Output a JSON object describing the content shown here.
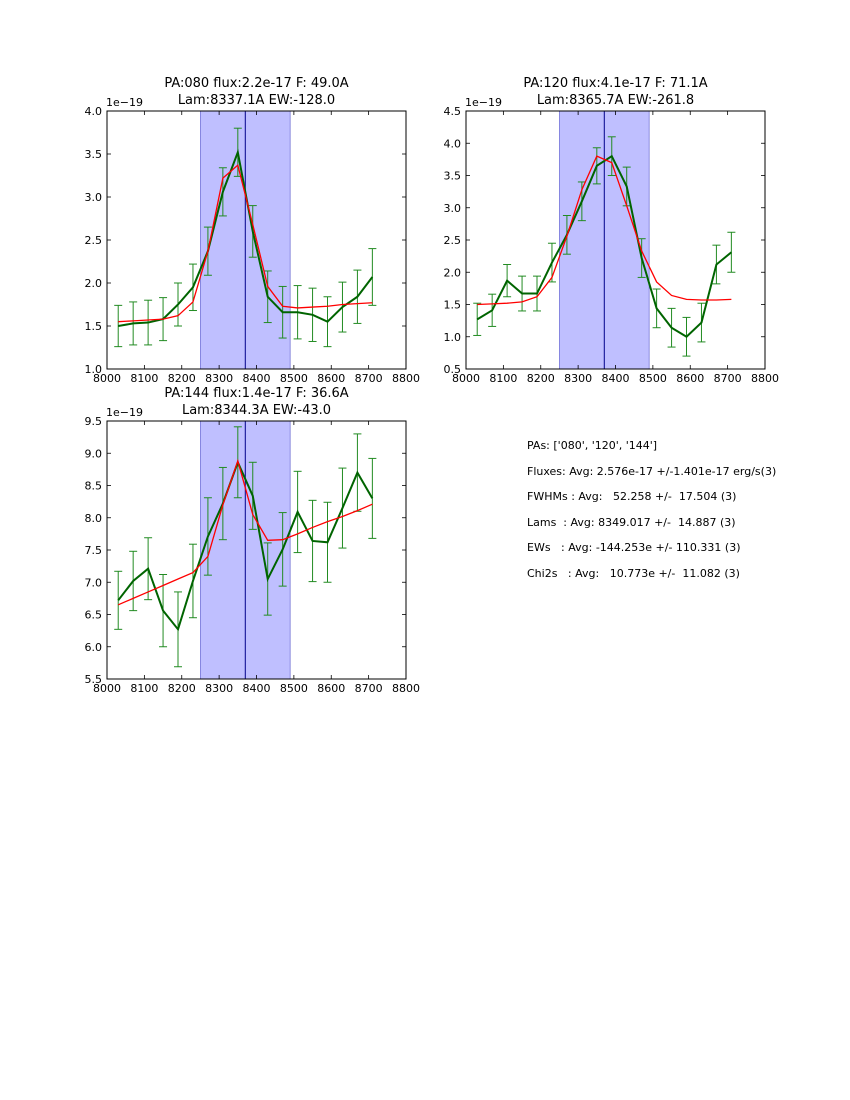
{
  "colors": {
    "data": "#006400",
    "errorbar": "#228b22",
    "fit": "#ff0000",
    "band": "#bfbfff",
    "band_edge": "#5555cc",
    "center_line": "#00008b"
  },
  "chart_data": [
    {
      "type": "line",
      "title_line1": "PA:080 flux:2.2e-17 F: 49.0A",
      "title_line2": "Lam:8337.1A EW:-128.0",
      "offset_label": "1e−19",
      "xlim": [
        8000,
        8800
      ],
      "ylim": [
        1.0,
        4.0
      ],
      "xticks": [
        8000,
        8100,
        8200,
        8300,
        8400,
        8500,
        8600,
        8700,
        8800
      ],
      "yticks": [
        1.0,
        1.5,
        2.0,
        2.5,
        3.0,
        3.5,
        4.0
      ],
      "band": [
        8250,
        8490
      ],
      "center": 8370,
      "series": [
        {
          "name": "data",
          "x": [
            8030,
            8070,
            8110,
            8150,
            8190,
            8230,
            8270,
            8310,
            8350,
            8390,
            8430,
            8470,
            8510,
            8550,
            8590,
            8630,
            8670,
            8710
          ],
          "values": [
            1.5,
            1.53,
            1.54,
            1.58,
            1.75,
            1.95,
            2.37,
            3.06,
            3.52,
            2.6,
            1.84,
            1.66,
            1.66,
            1.63,
            1.55,
            1.72,
            1.84,
            2.07
          ],
          "errors": [
            0.24,
            0.25,
            0.26,
            0.25,
            0.25,
            0.27,
            0.28,
            0.28,
            0.28,
            0.3,
            0.3,
            0.3,
            0.31,
            0.31,
            0.29,
            0.29,
            0.31,
            0.33
          ]
        },
        {
          "name": "fit",
          "x": [
            8030,
            8070,
            8110,
            8150,
            8190,
            8230,
            8270,
            8310,
            8350,
            8390,
            8430,
            8470,
            8510,
            8550,
            8590,
            8630,
            8670,
            8710
          ],
          "values": [
            1.55,
            1.56,
            1.57,
            1.58,
            1.62,
            1.78,
            2.37,
            3.22,
            3.37,
            2.68,
            1.96,
            1.73,
            1.71,
            1.72,
            1.73,
            1.75,
            1.76,
            1.77
          ]
        }
      ]
    },
    {
      "type": "line",
      "title_line1": "PA:120 flux:4.1e-17 F: 71.1A",
      "title_line2": "Lam:8365.7A EW:-261.8",
      "offset_label": "1e−19",
      "xlim": [
        8000,
        8800
      ],
      "ylim": [
        0.5,
        4.5
      ],
      "xticks": [
        8000,
        8100,
        8200,
        8300,
        8400,
        8500,
        8600,
        8700,
        8800
      ],
      "yticks": [
        0.5,
        1.0,
        1.5,
        2.0,
        2.5,
        3.0,
        3.5,
        4.0,
        4.5
      ],
      "band": [
        8250,
        8490
      ],
      "center": 8370,
      "series": [
        {
          "name": "data",
          "x": [
            8030,
            8070,
            8110,
            8150,
            8190,
            8230,
            8270,
            8310,
            8350,
            8390,
            8430,
            8470,
            8510,
            8550,
            8590,
            8630,
            8670,
            8710
          ],
          "values": [
            1.27,
            1.41,
            1.87,
            1.67,
            1.67,
            2.15,
            2.58,
            3.1,
            3.65,
            3.8,
            3.33,
            2.22,
            1.44,
            1.14,
            1.0,
            1.22,
            2.12,
            2.31
          ],
          "errors": [
            0.25,
            0.25,
            0.25,
            0.27,
            0.27,
            0.3,
            0.3,
            0.3,
            0.28,
            0.3,
            0.3,
            0.3,
            0.3,
            0.3,
            0.3,
            0.3,
            0.3,
            0.31
          ]
        },
        {
          "name": "fit",
          "x": [
            8030,
            8070,
            8110,
            8150,
            8190,
            8230,
            8270,
            8310,
            8350,
            8390,
            8430,
            8470,
            8510,
            8550,
            8590,
            8630,
            8670,
            8710
          ],
          "values": [
            1.5,
            1.51,
            1.52,
            1.54,
            1.62,
            1.92,
            2.56,
            3.28,
            3.8,
            3.7,
            3.03,
            2.33,
            1.85,
            1.64,
            1.58,
            1.57,
            1.57,
            1.58
          ]
        }
      ]
    },
    {
      "type": "line",
      "title_line1": "PA:144 flux:1.4e-17 F: 36.6A",
      "title_line2": "Lam:8344.3A EW:-43.0",
      "offset_label": "1e−19",
      "xlim": [
        8000,
        8800
      ],
      "ylim": [
        5.5,
        9.5
      ],
      "xticks": [
        8000,
        8100,
        8200,
        8300,
        8400,
        8500,
        8600,
        8700,
        8800
      ],
      "yticks": [
        5.5,
        6.0,
        6.5,
        7.0,
        7.5,
        8.0,
        8.5,
        9.0,
        9.5
      ],
      "band": [
        8250,
        8490
      ],
      "center": 8370,
      "series": [
        {
          "name": "data",
          "x": [
            8030,
            8070,
            8110,
            8150,
            8190,
            8230,
            8270,
            8310,
            8350,
            8390,
            8430,
            8470,
            8510,
            8550,
            8590,
            8630,
            8670,
            8710
          ],
          "values": [
            6.72,
            7.02,
            7.21,
            6.56,
            6.27,
            7.02,
            7.71,
            8.22,
            8.86,
            8.34,
            7.05,
            7.51,
            8.09,
            7.64,
            7.62,
            8.15,
            8.7,
            8.3
          ],
          "errors": [
            0.45,
            0.46,
            0.48,
            0.56,
            0.58,
            0.57,
            0.6,
            0.56,
            0.55,
            0.52,
            0.56,
            0.57,
            0.63,
            0.63,
            0.62,
            0.62,
            0.6,
            0.62
          ]
        },
        {
          "name": "fit",
          "x": [
            8030,
            8070,
            8110,
            8150,
            8190,
            8230,
            8270,
            8310,
            8350,
            8390,
            8430,
            8470,
            8510,
            8550,
            8590,
            8630,
            8670,
            8710
          ],
          "values": [
            6.65,
            6.75,
            6.85,
            6.95,
            7.05,
            7.15,
            7.4,
            8.2,
            8.88,
            8.05,
            7.65,
            7.66,
            7.75,
            7.85,
            7.94,
            8.02,
            8.11,
            8.21
          ]
        }
      ]
    }
  ],
  "summary": {
    "pas": "PAs: ['080', '120', '144']",
    "fluxes": "Fluxes: Avg: 2.576e-17 +/-1.401e-17 erg/s(3)",
    "fwhms": "FWHMs : Avg:   52.258 +/-  17.504 (3)",
    "lams": "Lams  : Avg: 8349.017 +/-  14.887 (3)",
    "ews": "EWs   : Avg: -144.253e +/- 110.331 (3)",
    "chi2s": "Chi2s   : Avg:   10.773e +/-  11.082 (3)"
  }
}
